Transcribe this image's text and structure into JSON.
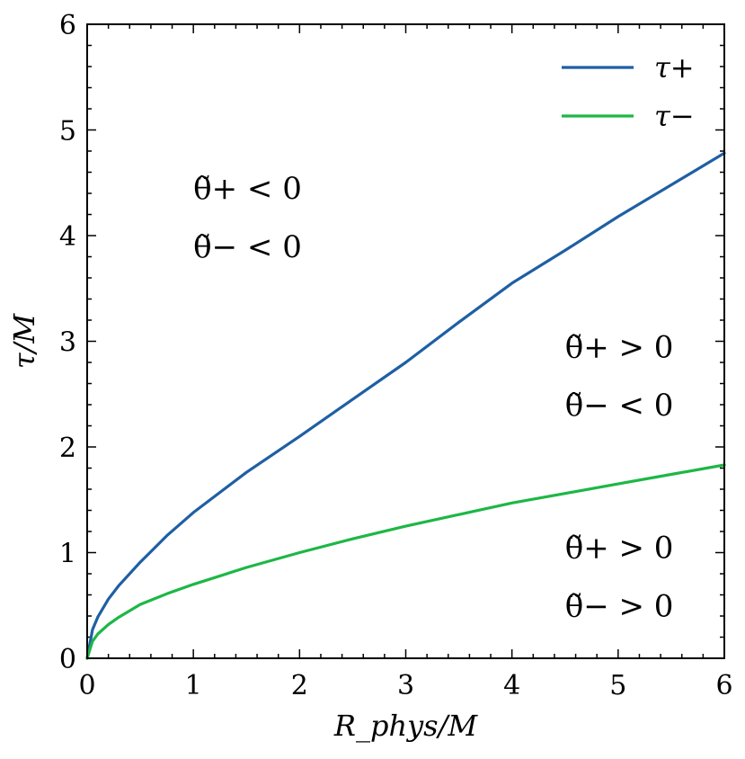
{
  "chart_data": {
    "type": "line",
    "xlabel": "R_phys/M",
    "ylabel": "τ/M",
    "xlim": [
      0,
      6
    ],
    "ylim": [
      0,
      6
    ],
    "xticks": [
      "0",
      "1",
      "2",
      "3",
      "4",
      "5",
      "6"
    ],
    "yticks": [
      "0",
      "1",
      "2",
      "3",
      "4",
      "5",
      "6"
    ],
    "grid": false,
    "legend_position": "top-right",
    "series": [
      {
        "name": "τ+",
        "color": "#1f5fa3",
        "x": [
          0,
          0.05,
          0.1,
          0.2,
          0.3,
          0.5,
          0.75,
          1.0,
          1.5,
          2.0,
          2.5,
          3.0,
          3.5,
          4.0,
          4.5,
          5.0,
          5.5,
          6.0
        ],
        "y": [
          0,
          0.27,
          0.39,
          0.56,
          0.69,
          0.91,
          1.16,
          1.38,
          1.76,
          2.1,
          2.45,
          2.8,
          3.18,
          3.55,
          3.86,
          4.18,
          4.48,
          4.78
        ]
      },
      {
        "name": "τ−",
        "color": "#1db746",
        "x": [
          0,
          0.05,
          0.1,
          0.2,
          0.3,
          0.5,
          0.75,
          1.0,
          1.5,
          2.0,
          2.5,
          3.0,
          3.5,
          4.0,
          4.5,
          5.0,
          5.5,
          6.0
        ],
        "y": [
          0,
          0.16,
          0.23,
          0.32,
          0.39,
          0.51,
          0.61,
          0.7,
          0.86,
          1.0,
          1.13,
          1.25,
          1.36,
          1.47,
          1.56,
          1.65,
          1.74,
          1.83
        ]
      }
    ],
    "annotations": [
      {
        "lines": [
          "θ̃+ < 0",
          "θ̃− < 0"
        ],
        "x": 1.0,
        "y": [
          4.45,
          3.9
        ]
      },
      {
        "lines": [
          "θ̃+ > 0",
          "θ̃− < 0"
        ],
        "x": 4.5,
        "y": [
          2.95,
          2.4
        ]
      },
      {
        "lines": [
          "θ̃+ > 0",
          "θ̃− > 0"
        ],
        "x": 4.5,
        "y": [
          1.05,
          0.5
        ]
      }
    ]
  }
}
